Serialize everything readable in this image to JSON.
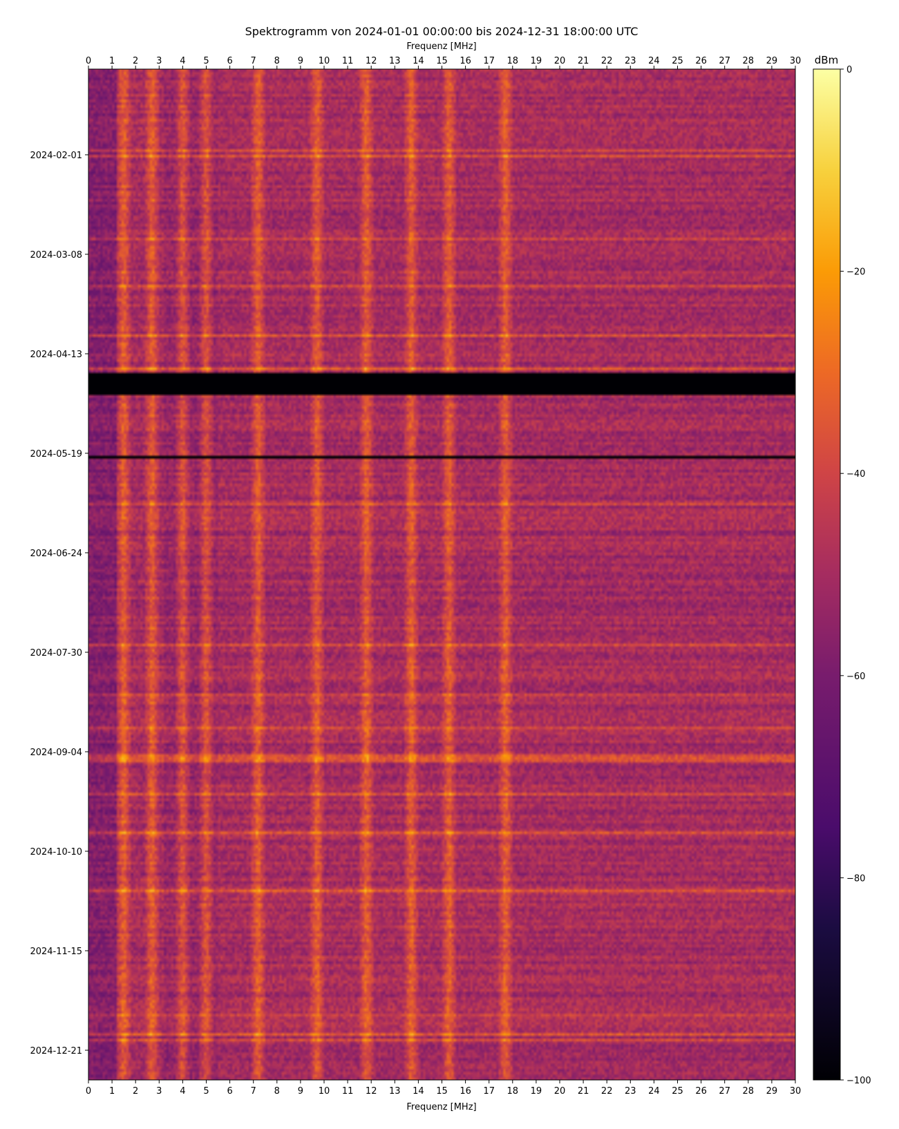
{
  "chart_data": {
    "type": "heatmap",
    "title": "Spektrogramm von 2024-01-01 00:00:00 bis 2024-12-31 18:00:00 UTC",
    "xlabel": "Frequenz [MHz]",
    "xlim": [
      0,
      30
    ],
    "x_ticks": [
      "0",
      "1",
      "2",
      "3",
      "4",
      "5",
      "6",
      "7",
      "8",
      "9",
      "10",
      "11",
      "12",
      "13",
      "14",
      "15",
      "16",
      "17",
      "18",
      "19",
      "20",
      "21",
      "22",
      "23",
      "24",
      "25",
      "26",
      "27",
      "28",
      "29",
      "30"
    ],
    "time_range": [
      "2024-01-01 00:00:00",
      "2024-12-31 18:00:00"
    ],
    "y_ticks": [
      "2024-02-01",
      "2024-03-08",
      "2024-04-13",
      "2024-05-19",
      "2024-06-24",
      "2024-07-30",
      "2024-09-04",
      "2024-10-10",
      "2024-11-15",
      "2024-12-21"
    ],
    "colorbar": {
      "label": "dBm",
      "range": [
        -100,
        0
      ],
      "ticks": [
        "0",
        "−20",
        "−40",
        "−60",
        "−80",
        "−100"
      ],
      "colormap": "inferno"
    },
    "strong_frequency_bands_mhz": [
      1.5,
      2.7,
      4.0,
      5.0,
      7.2,
      9.7,
      11.8,
      13.7,
      15.3,
      17.7
    ],
    "data_gaps": [
      {
        "from": "2024-04-20",
        "to": "2024-04-28"
      },
      {
        "from": "2024-05-20",
        "to": "2024-05-21"
      }
    ]
  }
}
